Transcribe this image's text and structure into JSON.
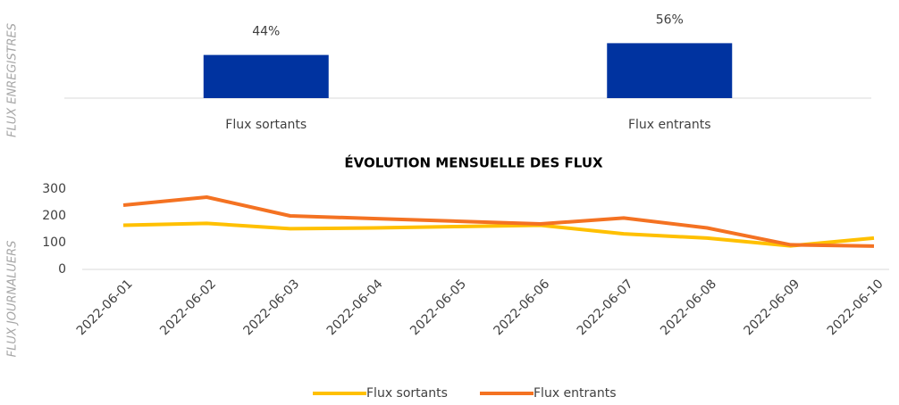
{
  "chart_data": [
    {
      "type": "bar",
      "y_label": "FLUX ENREGISTRES",
      "categories": [
        "Flux sortants",
        "Flux entrants"
      ],
      "values": [
        44,
        56
      ],
      "value_labels": [
        "44%",
        "56%"
      ],
      "color": "#0033a0"
    },
    {
      "type": "line",
      "title": "ÉVOLUTION MENSUELLE DES FLUX",
      "y_label": "FLUX JOURNALUERS",
      "categories": [
        "2022-06-01",
        "2022-06-02",
        "2022-06-03",
        "2022-06-04",
        "2022-06-05",
        "2022-06-06",
        "2022-06-07",
        "2022-06-08",
        "2022-06-09",
        "2022-06-10"
      ],
      "series": [
        {
          "name": "Flux sortants",
          "color": "#ffc000",
          "values": [
            165,
            172,
            152,
            155,
            160,
            165,
            133,
            117,
            88,
            117
          ]
        },
        {
          "name": "Flux entrants",
          "color": "#f47222",
          "values": [
            240,
            270,
            200,
            190,
            180,
            170,
            192,
            155,
            92,
            87
          ]
        }
      ],
      "ylim": [
        0,
        300
      ],
      "yticks": [
        0,
        100,
        200,
        300
      ],
      "legend": "bottom"
    }
  ]
}
